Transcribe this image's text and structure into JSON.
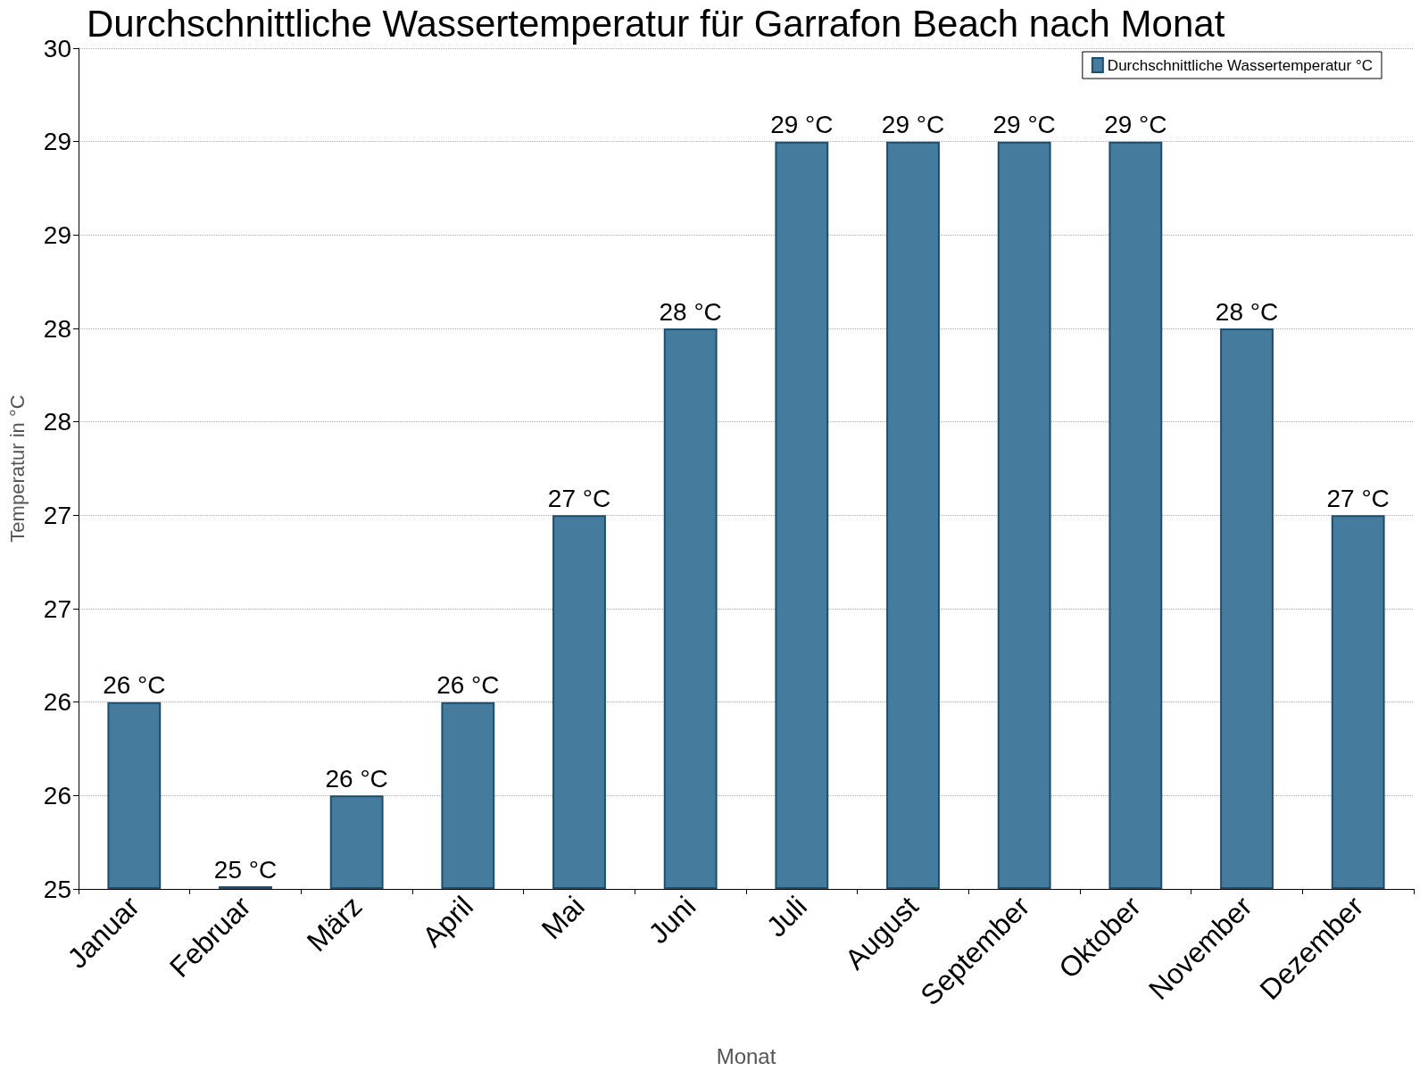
{
  "chart_data": {
    "type": "bar",
    "title": "Durchschnittliche Wassertemperatur für Garrafon Beach nach Monat",
    "xlabel": "Monat",
    "ylabel": "Temperatur in °C",
    "categories": [
      "Januar",
      "Februar",
      "März",
      "April",
      "Mai",
      "Juni",
      "Juli",
      "August",
      "September",
      "Oktober",
      "November",
      "Dezember"
    ],
    "series": [
      {
        "name": "Durchschnittliche Wassertemperatur °C",
        "color": "#457b9d",
        "values": [
          26,
          25,
          25.5,
          26,
          27,
          28,
          29,
          29,
          29,
          29,
          28,
          27
        ],
        "value_labels": [
          "26 °C",
          "25 °C",
          "26 °C",
          "26 °C",
          "27 °C",
          "28 °C",
          "29 °C",
          "29 °C",
          "29 °C",
          "29 °C",
          "28 °C",
          "27 °C"
        ]
      }
    ],
    "ylim": [
      25,
      29.5
    ],
    "yticks": [
      25,
      {
        "value": 25.5,
        "label": "26"
      },
      26,
      {
        "value": 26.5,
        "label": "27"
      },
      27,
      {
        "value": 27.5,
        "label": "28"
      },
      28,
      {
        "value": 28.5,
        "label": "29"
      },
      29,
      {
        "value": 29.5,
        "label": "30"
      }
    ],
    "grid": "y",
    "legend": "top right"
  }
}
